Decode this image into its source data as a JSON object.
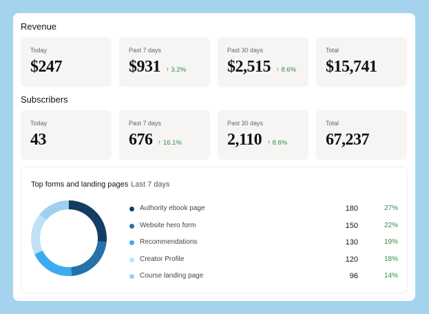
{
  "revenue": {
    "title": "Revenue",
    "tiles": [
      {
        "label": "Today",
        "value": "$247",
        "change": ""
      },
      {
        "label": "Past 7 days",
        "value": "$931",
        "change": "↑ 3.2%"
      },
      {
        "label": "Past 30 days",
        "value": "$2,515",
        "change": "↑ 8.6%"
      },
      {
        "label": "Total",
        "value": "$15,741",
        "change": ""
      }
    ]
  },
  "subscribers": {
    "title": "Subscribers",
    "tiles": [
      {
        "label": "Today",
        "value": "43",
        "change": ""
      },
      {
        "label": "Past 7 days",
        "value": "676",
        "change": "↑ 16.1%"
      },
      {
        "label": "Past 30 days",
        "value": "2,110",
        "change": "↑ 8.6%"
      },
      {
        "label": "Total",
        "value": "67,237",
        "change": ""
      }
    ]
  },
  "top_forms": {
    "title": "Top forms and landing pages",
    "period": "Last 7 days",
    "items": [
      {
        "name": "Authority ebook page",
        "count": "180",
        "pct": "27%",
        "color": "#133e62"
      },
      {
        "name": "Website hero form",
        "count": "150",
        "pct": "22%",
        "color": "#2472a8"
      },
      {
        "name": "Recommendations",
        "count": "130",
        "pct": "19%",
        "color": "#3cabf0"
      },
      {
        "name": "Creator Profile",
        "count": "120",
        "pct": "18%",
        "color": "#bfe2f7"
      },
      {
        "name": "Course landing page",
        "count": "96",
        "pct": "14%",
        "color": "#9fd0f0"
      }
    ]
  }
}
